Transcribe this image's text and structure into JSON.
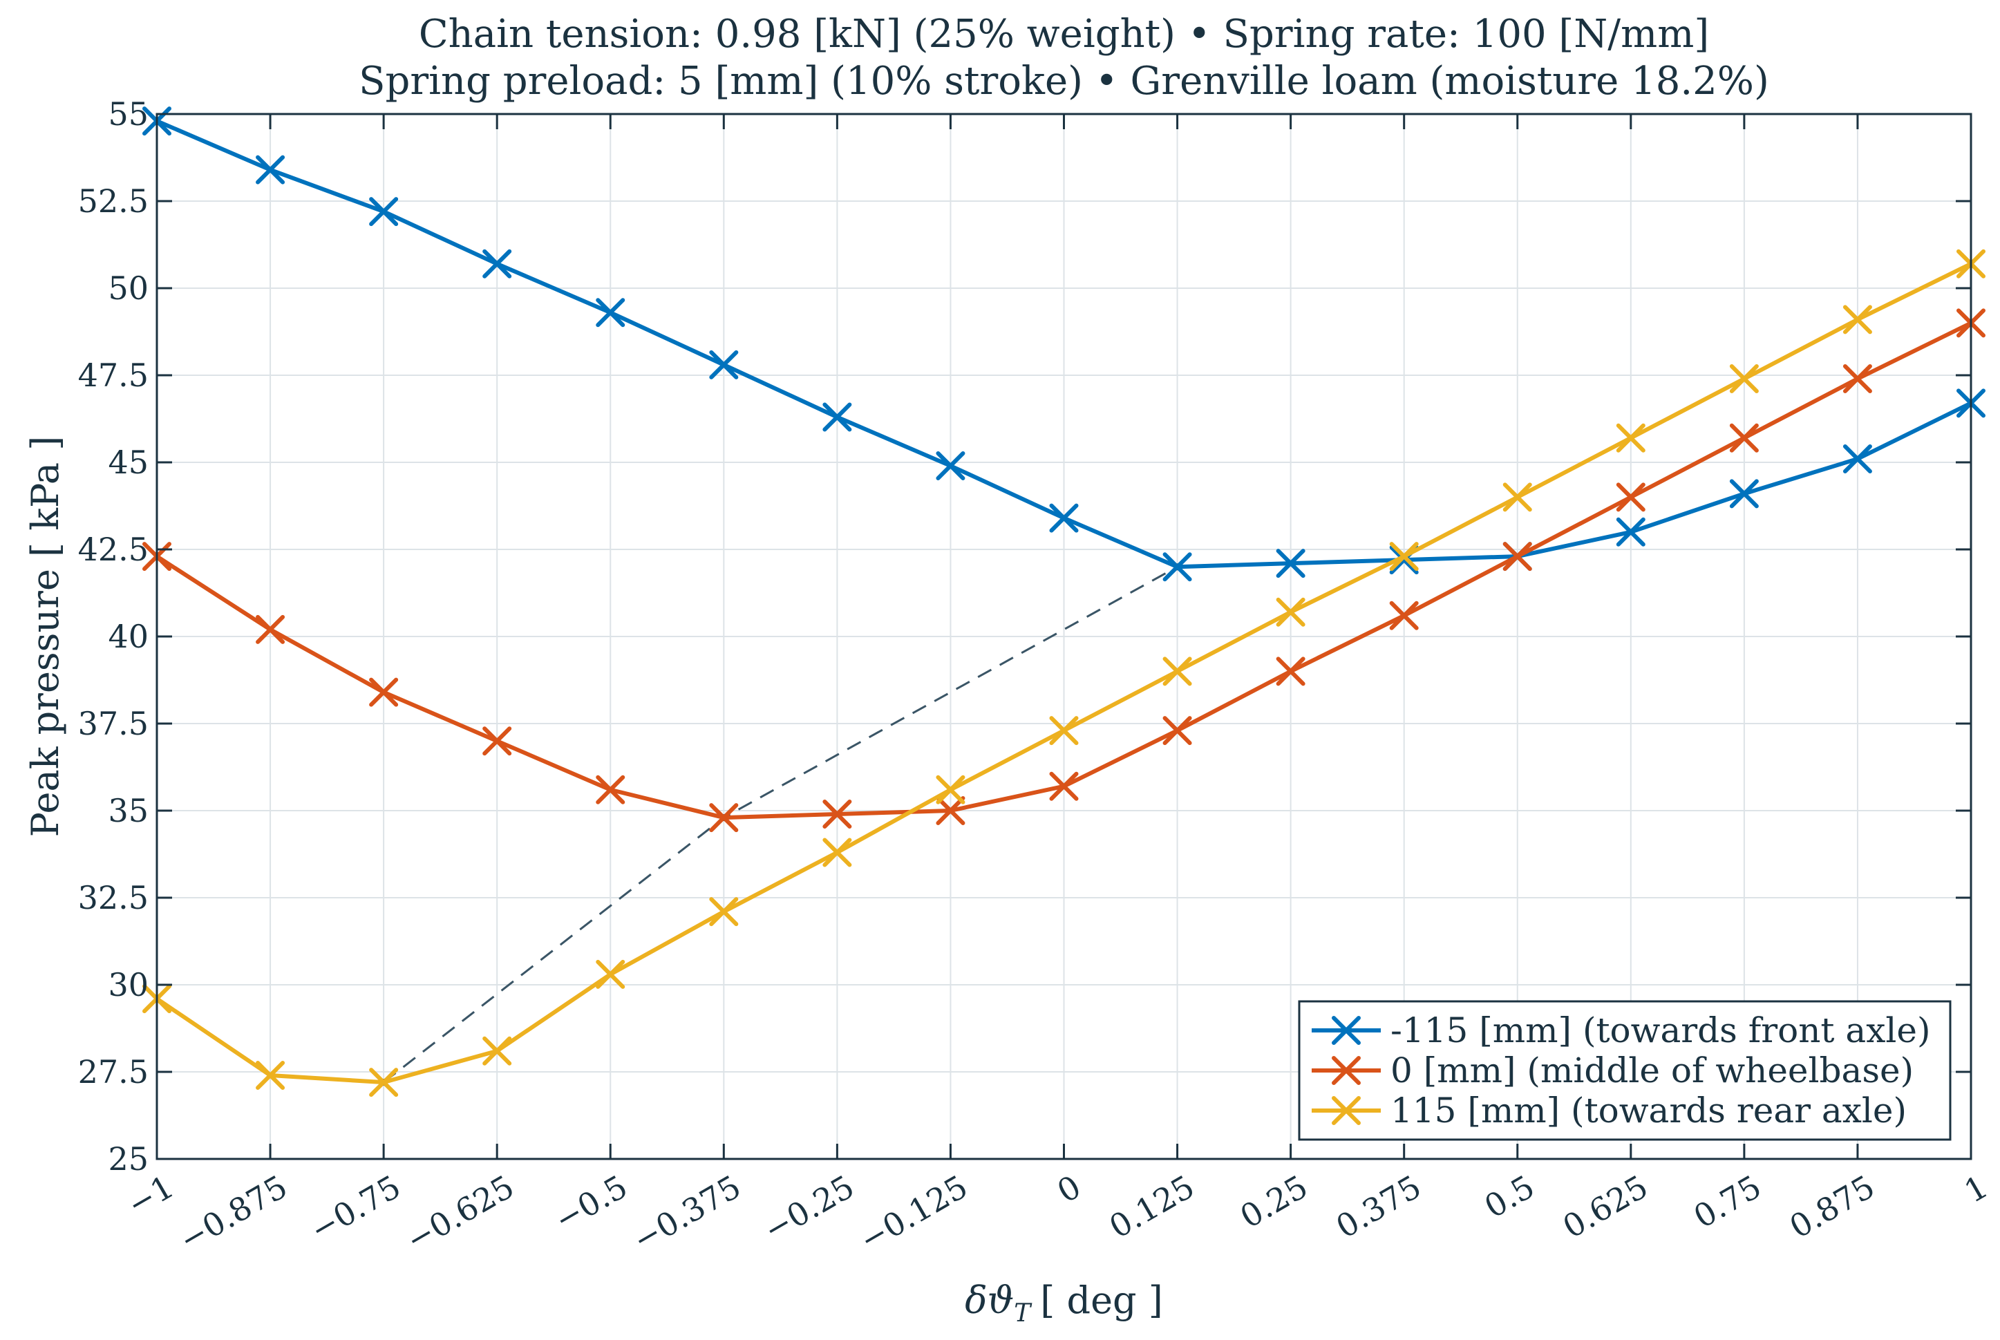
{
  "chart_data": {
    "type": "line",
    "title_line1": "Chain tension: 0.98 [kN] (25% weight) • Spring rate: 100 [N/mm]",
    "title_line2": "Spring preload: 5 [mm] (10% stroke) • Grenville loam (moisture 18.2%)",
    "xlabel": "δϑ_T [ deg ]",
    "xlabel_main": "δϑ",
    "xlabel_sub": "T",
    "xlabel_unit": "[ deg ]",
    "ylabel": "Peak pressure [ kPa ]",
    "xlim": [
      -1,
      1
    ],
    "ylim": [
      25,
      55
    ],
    "grid": true,
    "legend_position": "bottom-right",
    "x": [
      -1,
      -0.875,
      -0.75,
      -0.625,
      -0.5,
      -0.375,
      -0.25,
      -0.125,
      0,
      0.125,
      0.25,
      0.375,
      0.5,
      0.625,
      0.75,
      0.875,
      1
    ],
    "x_tick_labels": [
      "−1",
      "−0.875",
      "−0.75",
      "−0.625",
      "−0.5",
      "−0.375",
      "−0.25",
      "−0.125",
      "0",
      "0.125",
      "0.25",
      "0.375",
      "0.5",
      "0.625",
      "0.75",
      "0.875",
      "1"
    ],
    "y_ticks": [
      25,
      27.5,
      30,
      32.5,
      35,
      37.5,
      40,
      42.5,
      45,
      47.5,
      50,
      52.5,
      55
    ],
    "y_tick_labels": [
      "25",
      "27.5",
      "30",
      "32.5",
      "35",
      "37.5",
      "40",
      "42.5",
      "45",
      "47.5",
      "50",
      "52.5",
      "55"
    ],
    "series": [
      {
        "name": "-115 [mm] (towards front axle)",
        "color": "#0072bd",
        "values": [
          54.8,
          53.4,
          52.2,
          50.7,
          49.3,
          47.8,
          46.3,
          44.9,
          43.4,
          42.0,
          42.1,
          42.2,
          42.3,
          43.0,
          44.1,
          45.1,
          46.7
        ]
      },
      {
        "name": "0 [mm] (middle of wheelbase)",
        "color": "#d95319",
        "values": [
          42.3,
          40.2,
          38.4,
          37.0,
          35.6,
          34.8,
          34.9,
          35.0,
          35.7,
          37.3,
          39.0,
          40.6,
          42.3,
          44.0,
          45.7,
          47.4,
          49.0
        ]
      },
      {
        "name": "115 [mm] (towards rear axle)",
        "color": "#edb120",
        "values": [
          29.6,
          27.4,
          27.2,
          28.1,
          30.3,
          32.1,
          33.8,
          35.6,
          37.3,
          39.0,
          40.7,
          42.3,
          44.0,
          45.7,
          47.4,
          49.1,
          50.7
        ]
      }
    ],
    "minima_trace": {
      "style": "dashed",
      "color": "#3a5566",
      "points": [
        {
          "x": -0.75,
          "y": 27.2
        },
        {
          "x": -0.375,
          "y": 34.8
        },
        {
          "x": 0.125,
          "y": 42.0
        }
      ]
    }
  }
}
